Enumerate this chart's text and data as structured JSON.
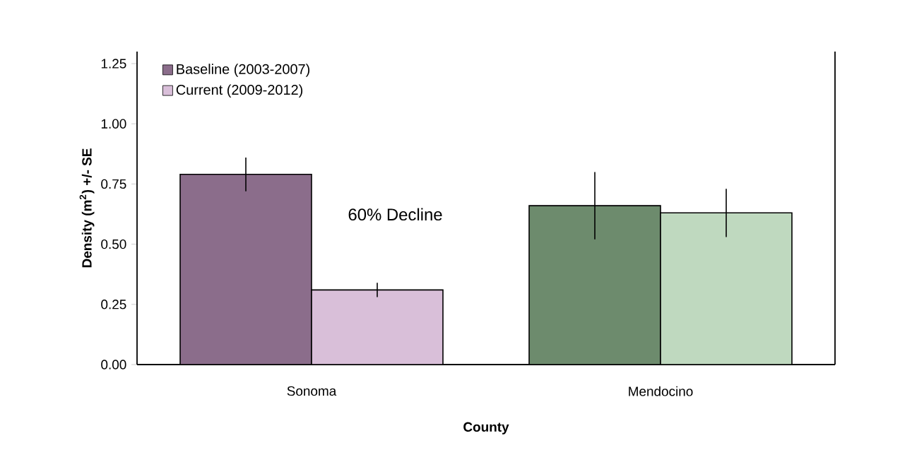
{
  "chart_data": {
    "type": "bar",
    "xlabel": "County",
    "ylabel": "Density (m$^{2}$) +/- SE",
    "categories": [
      "Sonoma",
      "Mendocino"
    ],
    "series": [
      {
        "name": "Baseline (2003-2007)",
        "color": "#8b6d8b",
        "colors": [
          "#8b6d8b",
          "#6d8b6d"
        ],
        "values": [
          0.79,
          0.66
        ],
        "errors": [
          0.07,
          0.14
        ]
      },
      {
        "name": "Current (2009-2012)",
        "color": "#d9bfd9",
        "colors": [
          "#d9bfd9",
          "#bfd9bf"
        ],
        "values": [
          0.31,
          0.63
        ],
        "errors": [
          0.03,
          0.1
        ]
      }
    ],
    "ylim": [
      0,
      1.3
    ],
    "yticks": [
      {
        "value": 0,
        "label": "0.00"
      },
      {
        "value": 0.25,
        "label": "0.25"
      },
      {
        "value": 0.5,
        "label": "0.50"
      },
      {
        "value": 0.75,
        "label": "0.75"
      },
      {
        "value": 1,
        "label": "1.00"
      },
      {
        "value": 1.25,
        "label": "1.25"
      }
    ],
    "legend": "top left",
    "grid": false,
    "annotations": [
      "60% Decline"
    ]
  }
}
